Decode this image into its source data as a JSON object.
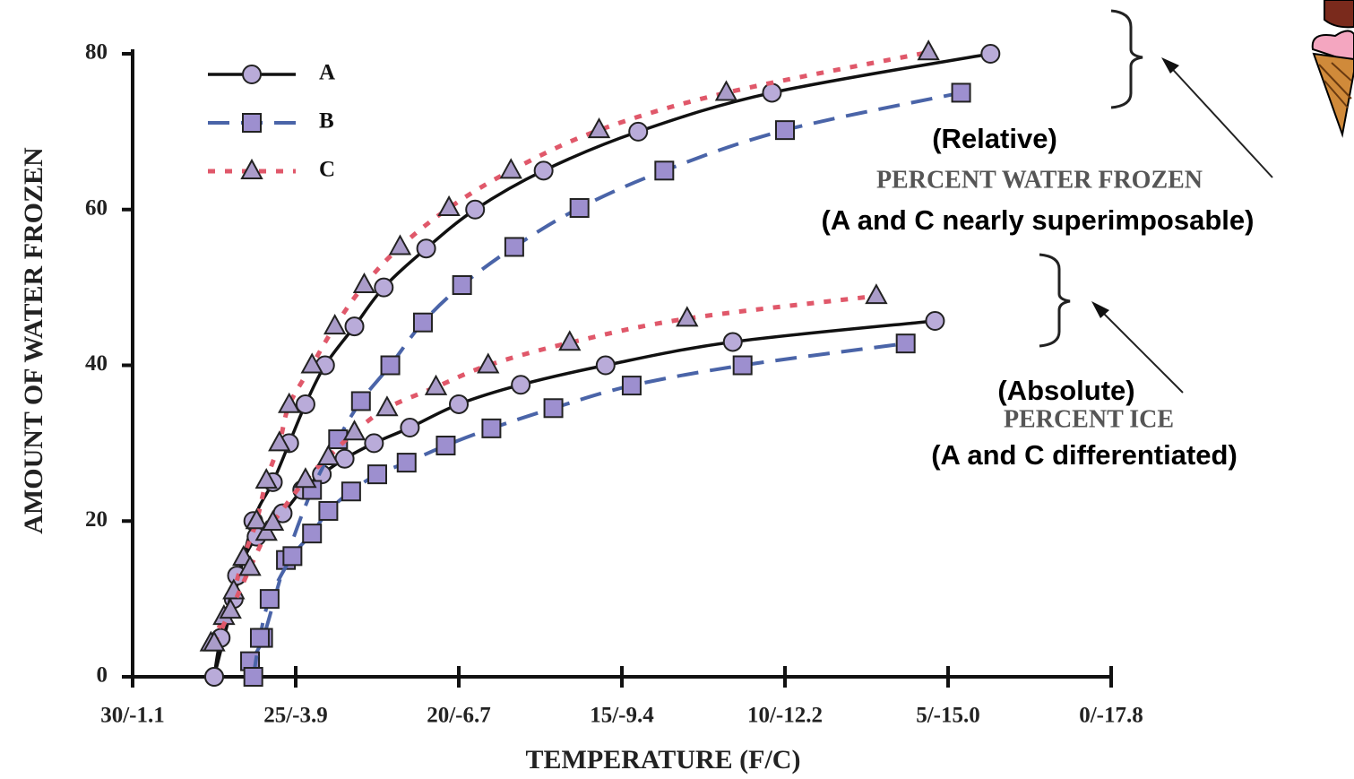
{
  "chart_data": {
    "type": "line",
    "xlabel": "TEMPERATURE (F/C)",
    "ylabel": "AMOUNT OF WATER FROZEN",
    "xlim": [
      30,
      0
    ],
    "ylim": [
      0,
      80
    ],
    "xticks": [
      {
        "value": 30,
        "label": "30/-1.1"
      },
      {
        "value": 25,
        "label": "25/-3.9"
      },
      {
        "value": 20,
        "label": "20/-6.7"
      },
      {
        "value": 15,
        "label": "15/-9.4"
      },
      {
        "value": 10,
        "label": "10/-12.2"
      },
      {
        "value": 5,
        "label": "5/-15.0"
      },
      {
        "value": 0,
        "label": "0/-17.8"
      }
    ],
    "yticks": [
      0,
      20,
      40,
      60,
      80
    ],
    "legend": "upper left",
    "annotations": [
      "(Relative)",
      "PERCENT WATER FROZEN",
      "(A and C nearly superimposable)",
      "(Absolute)",
      "PERCENT ICE",
      "(A and C differentiated)"
    ],
    "series": [
      {
        "name": "A",
        "color": "#111111",
        "marker": "circle",
        "marker_color": "#b9abd9",
        "dash": "solid",
        "relative": {
          "x": [
            27.5,
            26.9,
            26.3,
            25.7,
            25.2,
            24.7,
            24.1,
            23.2,
            22.3,
            21.0,
            19.5,
            17.4,
            14.5,
            10.4,
            3.7
          ],
          "values": [
            0,
            10,
            20,
            25,
            30,
            35,
            40,
            45,
            50,
            55,
            60,
            65,
            70,
            75,
            80
          ]
        },
        "absolute": {
          "x": [
            27.5,
            27.3,
            26.8,
            26.2,
            25.4,
            24.8,
            24.2,
            23.5,
            22.6,
            21.5,
            20.0,
            18.1,
            15.5,
            11.6,
            5.4
          ],
          "values": [
            0,
            5,
            13,
            18,
            21,
            24,
            26,
            28,
            30,
            32,
            35,
            37.5,
            40,
            43,
            45.7
          ]
        }
      },
      {
        "name": "B",
        "color": "#4a64a8",
        "marker": "square",
        "marker_color": "#9d8fcf",
        "dash": "dashed",
        "relative": {
          "x": [
            26.4,
            26.0,
            25.3,
            24.5,
            23.7,
            23.0,
            22.1,
            21.1,
            19.9,
            18.3,
            16.3,
            13.7,
            10.0,
            4.6
          ],
          "values": [
            2,
            5,
            15,
            24,
            30.5,
            35.4,
            40,
            45.5,
            50.3,
            55.2,
            60.2,
            65,
            70.2,
            75
          ]
        },
        "absolute": {
          "x": [
            26.3,
            26.1,
            25.8,
            25.1,
            24.5,
            24.0,
            23.3,
            22.5,
            21.6,
            20.4,
            19.0,
            17.1,
            14.7,
            11.3,
            6.3
          ],
          "values": [
            0,
            5,
            10,
            15.5,
            18.4,
            21.3,
            23.8,
            26,
            27.5,
            29.7,
            31.9,
            34.5,
            37.4,
            40,
            42.8
          ]
        }
      },
      {
        "name": "C",
        "color": "#e0586a",
        "marker": "triangle",
        "marker_color": "#aa9cc9",
        "dash": "dotted",
        "relative": {
          "x": [
            27.6,
            27.2,
            26.9,
            26.6,
            26.2,
            25.9,
            25.5,
            25.2,
            24.5,
            23.8,
            22.9,
            21.8,
            20.3,
            18.4,
            15.7,
            11.8,
            5.6
          ],
          "values": [
            4.3,
            7.7,
            11,
            15.3,
            20,
            25.2,
            30,
            34.9,
            40,
            45,
            50.3,
            55.2,
            60.2,
            65,
            70.2,
            75,
            80.2
          ]
        },
        "absolute": {
          "x": [
            27.5,
            27.0,
            26.4,
            25.9,
            25.7,
            24.7,
            24.0,
            23.2,
            22.2,
            20.7,
            19.1,
            16.6,
            13.0,
            7.2
          ],
          "values": [
            4.3,
            8.5,
            14,
            18.5,
            19.8,
            25.3,
            28.2,
            31.4,
            34.5,
            37.2,
            40,
            42.9,
            46,
            48.9
          ]
        }
      }
    ]
  }
}
